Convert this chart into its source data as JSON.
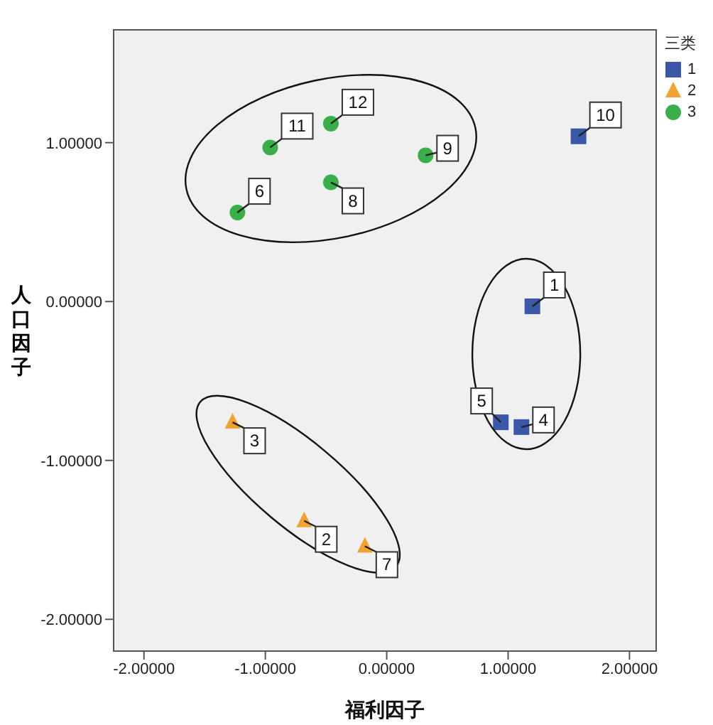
{
  "chart_data": {
    "type": "scatter",
    "xlabel": "福利因子",
    "ylabel": "人口因子",
    "legend_title": "三类",
    "legend": "top right",
    "xlim": [
      -2.25,
      2.22
    ],
    "ylim": [
      -2.2,
      1.71
    ],
    "xticks": [
      {
        "value": -2,
        "label": "-2.00000"
      },
      {
        "value": -1,
        "label": "-1.00000"
      },
      {
        "value": 0,
        "label": "0.00000"
      },
      {
        "value": 1,
        "label": "1.00000"
      },
      {
        "value": 2,
        "label": "2.00000"
      }
    ],
    "yticks": [
      {
        "value": -2,
        "label": "-2.00000"
      },
      {
        "value": -1,
        "label": "-1.00000"
      },
      {
        "value": 0,
        "label": "0.00000"
      },
      {
        "value": 1,
        "label": "1.00000"
      }
    ],
    "series": [
      {
        "name": "1",
        "color": "#3b57a8",
        "marker": "square",
        "x": [
          1.2,
          1.11,
          0.94,
          1.58
        ],
        "values": [
          -0.03,
          -0.79,
          -0.76,
          1.04
        ]
      },
      {
        "name": "2",
        "color": "#f0a330",
        "marker": "triangle",
        "x": [
          -0.68,
          -1.27,
          -0.18
        ],
        "values": [
          -1.38,
          -0.76,
          -1.54
        ]
      },
      {
        "name": "3",
        "color": "#3aae4a",
        "marker": "circle",
        "x": [
          -1.23,
          -0.46,
          0.32,
          -0.96,
          -0.46
        ],
        "values": [
          0.56,
          0.75,
          0.92,
          0.97,
          1.12
        ]
      }
    ],
    "annotations": [
      {
        "text": "1",
        "x": 1.2,
        "y": -0.03
      },
      {
        "text": "4",
        "x": 1.11,
        "y": -0.79
      },
      {
        "text": "5",
        "x": 0.94,
        "y": -0.76
      },
      {
        "text": "10",
        "x": 1.58,
        "y": 1.04
      },
      {
        "text": "2",
        "x": -0.68,
        "y": -1.38
      },
      {
        "text": "3",
        "x": -1.27,
        "y": -0.76
      },
      {
        "text": "7",
        "x": -0.18,
        "y": -1.54
      },
      {
        "text": "6",
        "x": -1.23,
        "y": 0.56
      },
      {
        "text": "8",
        "x": -0.46,
        "y": 0.75
      },
      {
        "text": "9",
        "x": 0.32,
        "y": 0.92
      },
      {
        "text": "11",
        "x": -0.96,
        "y": 0.97
      },
      {
        "text": "12",
        "x": -0.46,
        "y": 1.12
      }
    ]
  }
}
